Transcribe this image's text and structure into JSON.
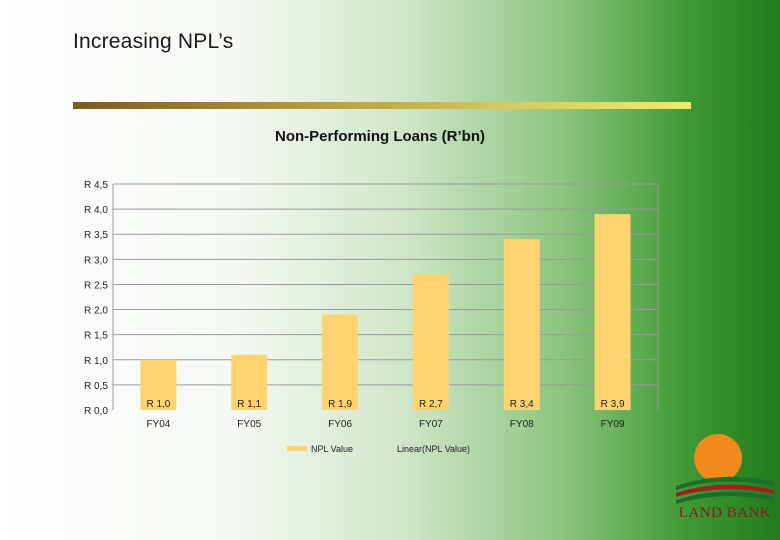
{
  "slide": {
    "title": "Increasing NPL’s"
  },
  "chart_data": {
    "type": "bar",
    "title": "Non-Performing Loans (R’bn)",
    "categories": [
      "FY04",
      "FY05",
      "FY06",
      "FY07",
      "FY08",
      "FY09"
    ],
    "series": [
      {
        "name": "NPL Value",
        "values": [
          1.0,
          1.1,
          1.9,
          2.7,
          3.4,
          3.9
        ]
      }
    ],
    "data_labels": [
      "R 1,0",
      "R 1,1",
      "R 1,9",
      "R 2,7",
      "R 3,4",
      "R 3,9"
    ],
    "y_ticks": [
      {
        "value": 0,
        "label": "R 0,0"
      },
      {
        "value": 0.5,
        "label": "R 0,5"
      },
      {
        "value": 1.0,
        "label": "R 1,0"
      },
      {
        "value": 1.5,
        "label": "R 1,5"
      },
      {
        "value": 2.0,
        "label": "R 2,0"
      },
      {
        "value": 2.5,
        "label": "R 2,5"
      },
      {
        "value": 3.0,
        "label": "R 3,0"
      },
      {
        "value": 3.5,
        "label": "R 3,5"
      },
      {
        "value": 4.0,
        "label": "R 4,0"
      },
      {
        "value": 4.5,
        "label": "R 4,5"
      }
    ],
    "ylim": [
      0,
      4.5
    ],
    "grid": true,
    "legend": [
      "NPL Value",
      "Linear(NPL Value)"
    ],
    "legend_position": "bottom",
    "bar_color": "#ffd470"
  },
  "logo": {
    "text": "LAND BANK"
  }
}
